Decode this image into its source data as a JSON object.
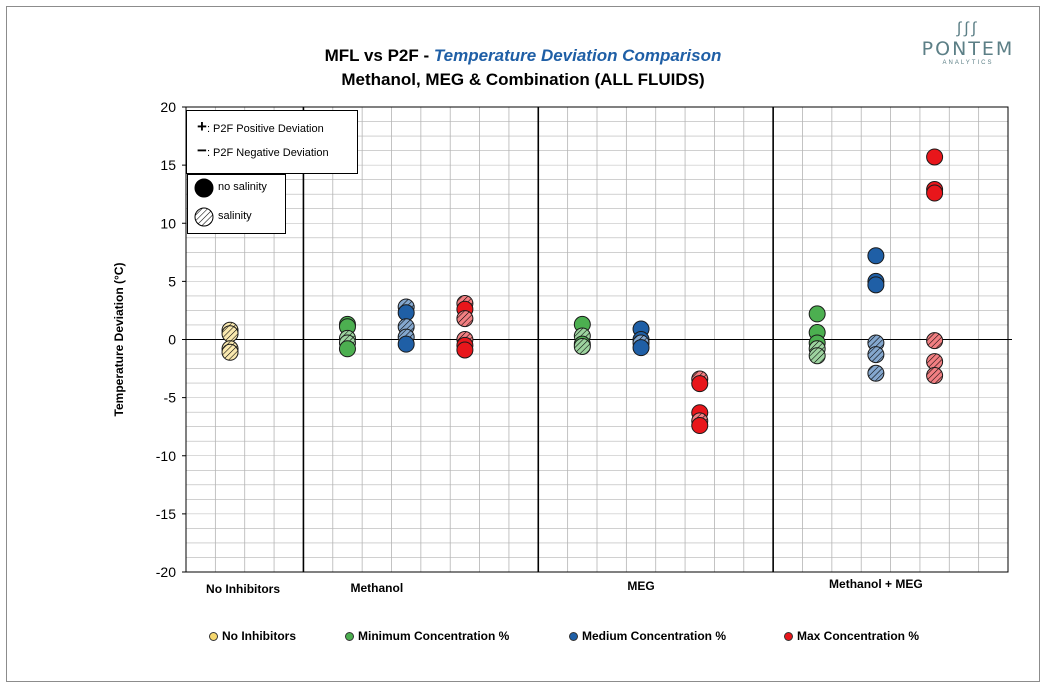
{
  "title": {
    "prefix": "MFL vs P2F - ",
    "emphasis": "Temperature Deviation Comparison",
    "line2": "Methanol, MEG &  Combination (ALL FLUIDS)"
  },
  "logo": {
    "glyph": "∫∫∫",
    "word": "PONTEM",
    "sub": "ANALYTICS"
  },
  "deviation_key": {
    "plus_symbol": "+",
    "plus_label": ": P2F Positive Deviation",
    "minus_symbol": "−",
    "minus_label": ": P2F Negative Deviation"
  },
  "salinity_key": {
    "no_salinity": "no salinity",
    "salinity": "salinity"
  },
  "legend": {
    "no_inhibitors": "No Inhibitors",
    "minimum": "Minimum Concentration %",
    "medium": "Medium Concentration %",
    "max": "Max Concentration %"
  },
  "colors": {
    "no_inhibitors": "#f5d76e",
    "minimum": "#4caf50",
    "medium": "#1f5fa6",
    "max": "#e8161b",
    "grid": "#b4b4b4"
  },
  "chart_data": {
    "type": "scatter",
    "title": "MFL vs P2F - Temperature Deviation Comparison",
    "subtitle": "Methanol, MEG &  Combination (ALL FLUIDS)",
    "ylabel": "Temperature Deviation (°C)",
    "xlabel": "",
    "ylim": [
      -20,
      20
    ],
    "yticks": [
      20,
      15,
      10,
      5,
      0,
      -5,
      -10,
      -15,
      -20
    ],
    "categories": [
      "No Inhibitors",
      "Methanol",
      "MEG",
      "Methanol + MEG"
    ],
    "category_label_slots": [
      1,
      6,
      15,
      23
    ],
    "slot_count": 28,
    "group_dividers": [
      4,
      12,
      20
    ],
    "series": [
      {
        "name": "No Inhibitors",
        "color_key": "no_inhibitors",
        "points": [
          {
            "slot": 1,
            "y": 0.8,
            "salinity": true
          },
          {
            "slot": 1,
            "y": 0.5,
            "salinity": true
          },
          {
            "slot": 1,
            "y": -0.8,
            "salinity": true
          },
          {
            "slot": 1,
            "y": -1.1,
            "salinity": true
          }
        ]
      },
      {
        "name": "Minimum Concentration %",
        "color_key": "minimum",
        "points": [
          {
            "slot": 5,
            "y": 1.3,
            "salinity": false
          },
          {
            "slot": 5,
            "y": 1.1,
            "salinity": false
          },
          {
            "slot": 5,
            "y": 0.1,
            "salinity": true
          },
          {
            "slot": 5,
            "y": -0.3,
            "salinity": true
          },
          {
            "slot": 5,
            "y": -0.8,
            "salinity": false
          },
          {
            "slot": 13,
            "y": 1.3,
            "salinity": false
          },
          {
            "slot": 13,
            "y": 0.3,
            "salinity": true
          },
          {
            "slot": 13,
            "y": -0.4,
            "salinity": false
          },
          {
            "slot": 13,
            "y": -0.6,
            "salinity": true
          },
          {
            "slot": 21,
            "y": 2.2,
            "salinity": false
          },
          {
            "slot": 21,
            "y": 0.6,
            "salinity": false
          },
          {
            "slot": 21,
            "y": -0.3,
            "salinity": false
          },
          {
            "slot": 21,
            "y": -0.8,
            "salinity": true
          },
          {
            "slot": 21,
            "y": -1.4,
            "salinity": true
          }
        ]
      },
      {
        "name": "Medium Concentration %",
        "color_key": "medium",
        "points": [
          {
            "slot": 7,
            "y": 2.8,
            "salinity": true
          },
          {
            "slot": 7,
            "y": 2.3,
            "salinity": false
          },
          {
            "slot": 7,
            "y": 1.1,
            "salinity": true
          },
          {
            "slot": 7,
            "y": 0.2,
            "salinity": true
          },
          {
            "slot": 7,
            "y": -0.4,
            "salinity": false
          },
          {
            "slot": 15,
            "y": 0.9,
            "salinity": false
          },
          {
            "slot": 15,
            "y": 0.0,
            "salinity": false
          },
          {
            "slot": 15,
            "y": -0.3,
            "salinity": true
          },
          {
            "slot": 15,
            "y": -0.7,
            "salinity": false
          },
          {
            "slot": 23,
            "y": 7.2,
            "salinity": false
          },
          {
            "slot": 23,
            "y": 5.0,
            "salinity": false
          },
          {
            "slot": 23,
            "y": 4.7,
            "salinity": false
          },
          {
            "slot": 23,
            "y": -0.3,
            "salinity": true
          },
          {
            "slot": 23,
            "y": -1.3,
            "salinity": true
          },
          {
            "slot": 23,
            "y": -2.9,
            "salinity": true
          }
        ]
      },
      {
        "name": "Max Concentration %",
        "color_key": "max",
        "points": [
          {
            "slot": 9,
            "y": 3.1,
            "salinity": true
          },
          {
            "slot": 9,
            "y": 2.6,
            "salinity": false
          },
          {
            "slot": 9,
            "y": 1.8,
            "salinity": true
          },
          {
            "slot": 9,
            "y": 0.0,
            "salinity": true
          },
          {
            "slot": 9,
            "y": -0.5,
            "salinity": false
          },
          {
            "slot": 9,
            "y": -0.9,
            "salinity": false
          },
          {
            "slot": 17,
            "y": -3.4,
            "salinity": true
          },
          {
            "slot": 17,
            "y": -3.8,
            "salinity": false
          },
          {
            "slot": 17,
            "y": -6.3,
            "salinity": false
          },
          {
            "slot": 17,
            "y": -7.0,
            "salinity": true
          },
          {
            "slot": 17,
            "y": -7.4,
            "salinity": false
          },
          {
            "slot": 25,
            "y": 15.7,
            "salinity": false
          },
          {
            "slot": 25,
            "y": 12.9,
            "salinity": false
          },
          {
            "slot": 25,
            "y": 12.6,
            "salinity": false
          },
          {
            "slot": 25,
            "y": -0.1,
            "salinity": true
          },
          {
            "slot": 25,
            "y": -1.9,
            "salinity": true
          },
          {
            "slot": 25,
            "y": -3.1,
            "salinity": true
          }
        ]
      }
    ]
  }
}
